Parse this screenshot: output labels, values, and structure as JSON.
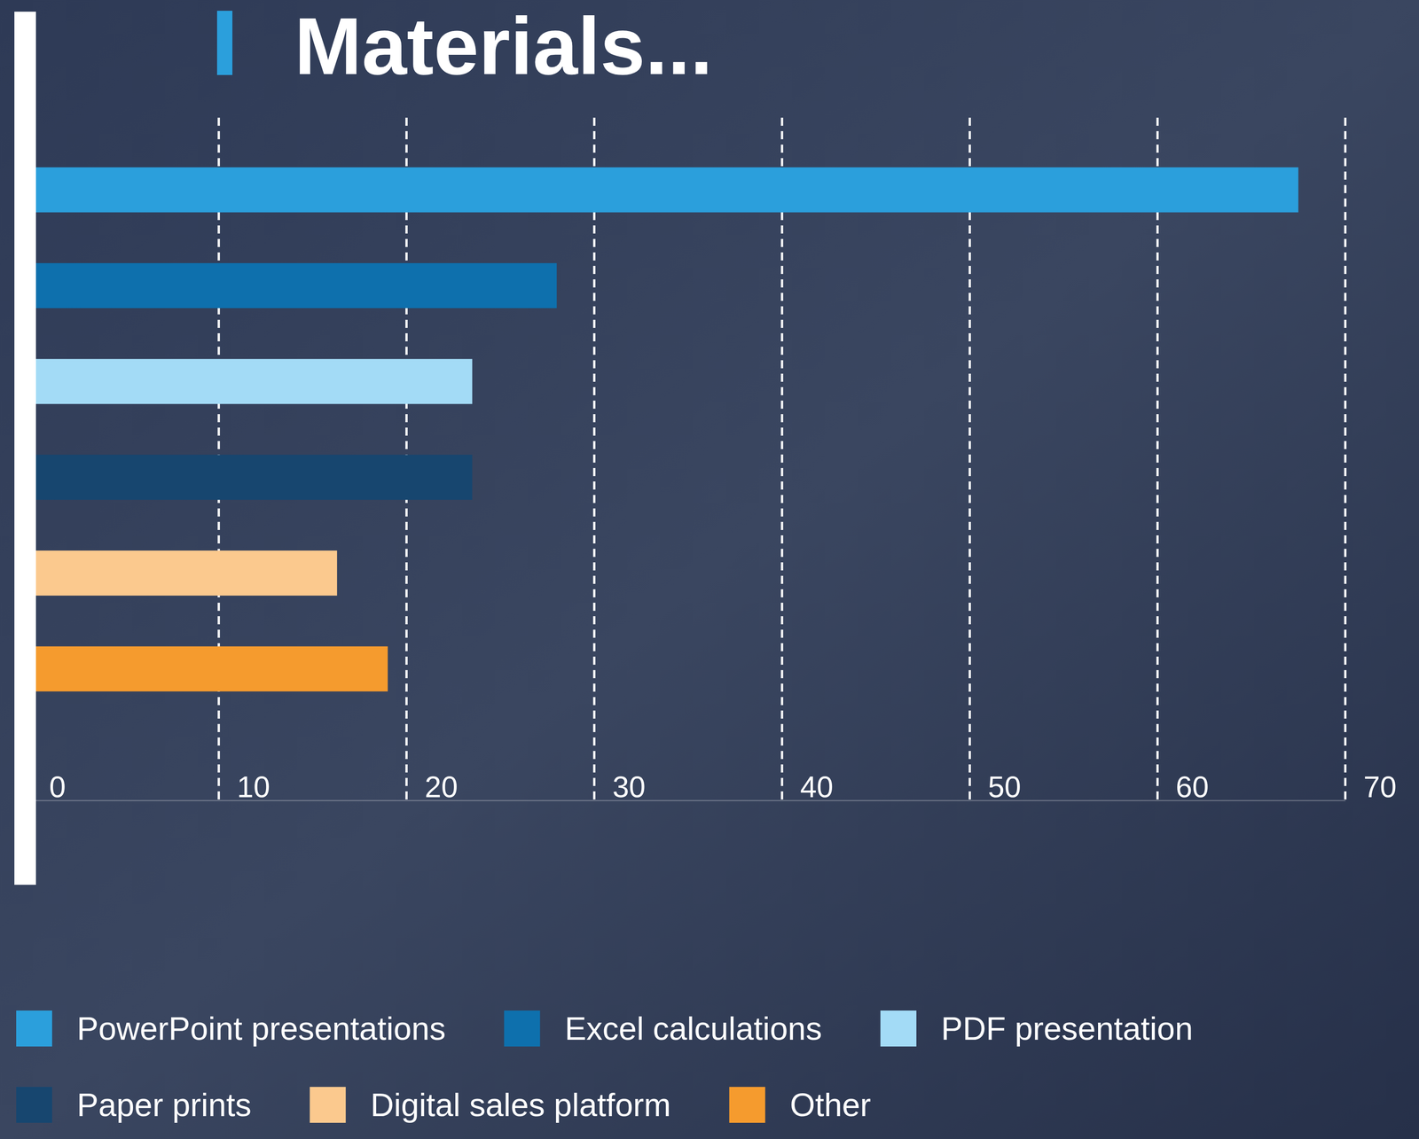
{
  "chart_data": {
    "type": "bar",
    "title": "Materials...",
    "orientation": "horizontal",
    "categories": [
      "PowerPoint presentations",
      "Excel calculations",
      "PDF presentation",
      "Paper prints",
      "Digital sales platform",
      "Other"
    ],
    "values": [
      67.5,
      28,
      23.5,
      23.5,
      16.3,
      19
    ],
    "colors": [
      "#2b9fdc",
      "#0e70ad",
      "#a3dbf6",
      "#17466f",
      "#fbc98e",
      "#f59b2e"
    ],
    "xlim": [
      0,
      70
    ],
    "xticks": [
      0,
      10,
      20,
      30,
      40,
      50,
      60,
      70
    ],
    "grid": true,
    "legend": "bottom",
    "tick_labels": "x"
  }
}
